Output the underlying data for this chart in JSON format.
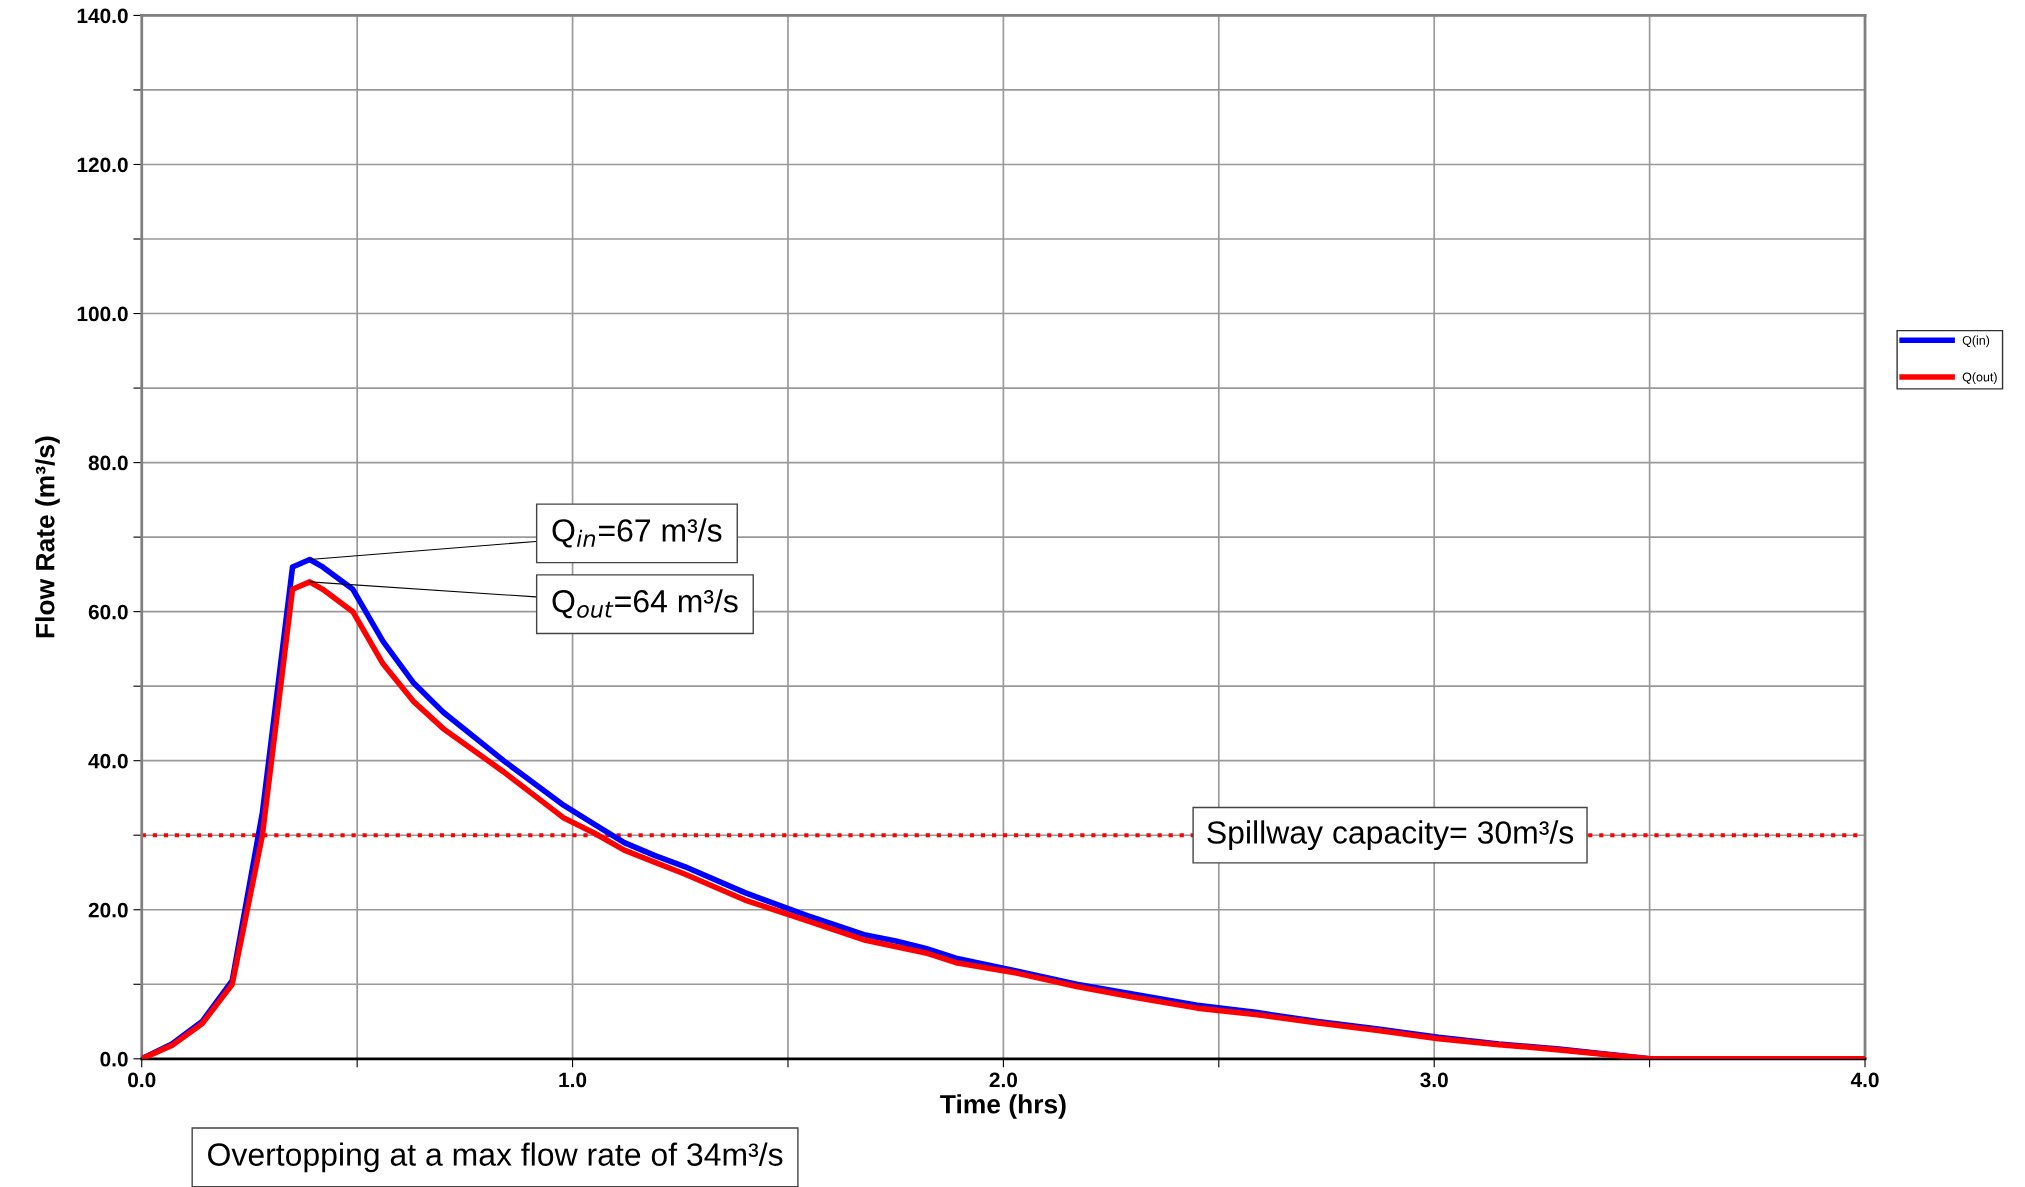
{
  "chart_data": {
    "type": "line",
    "xlabel": "Time (hrs)",
    "ylabel": "Flow Rate (m³/s)",
    "xlim": [
      0,
      4
    ],
    "ylim": [
      0,
      140
    ],
    "xticks": [
      {
        "value": 0.0,
        "label": "0.0"
      },
      {
        "value": 0.5,
        "label": null
      },
      {
        "value": 1.0,
        "label": "1.0"
      },
      {
        "value": 1.5,
        "label": null
      },
      {
        "value": 2.0,
        "label": "2.0"
      },
      {
        "value": 2.5,
        "label": null
      },
      {
        "value": 3.0,
        "label": "3.0"
      },
      {
        "value": 3.5,
        "label": null
      },
      {
        "value": 4.0,
        "label": "4.0"
      }
    ],
    "yticks": [
      {
        "value": 0,
        "label": "0.0"
      },
      {
        "value": 10,
        "label": null
      },
      {
        "value": 20,
        "label": "20.0"
      },
      {
        "value": 30,
        "label": null
      },
      {
        "value": 40,
        "label": "40.0"
      },
      {
        "value": 50,
        "label": null
      },
      {
        "value": 60,
        "label": "60.0"
      },
      {
        "value": 70,
        "label": null
      },
      {
        "value": 80,
        "label": "80.0"
      },
      {
        "value": 90,
        "label": null
      },
      {
        "value": 100,
        "label": "100.0"
      },
      {
        "value": 110,
        "label": null
      },
      {
        "value": 120,
        "label": "120.0"
      },
      {
        "value": 130,
        "label": null
      },
      {
        "value": 140,
        "label": "140.0"
      }
    ],
    "grid": true,
    "legend": "right",
    "marker": "none",
    "line_style": "solid",
    "series": [
      {
        "name": "Q(in)",
        "color": "#0000ff",
        "x": [
          0,
          0.07,
          0.14,
          0.21,
          0.28,
          0.35,
          0.39,
          0.42,
          0.49,
          0.56,
          0.63,
          0.7,
          0.84,
          0.98,
          1.05,
          1.12,
          1.19,
          1.26,
          1.4,
          1.54,
          1.68,
          1.75,
          1.82,
          1.89,
          2.03,
          2.17,
          2.31,
          2.45,
          2.59,
          2.73,
          2.87,
          3.01,
          3.15,
          3.29,
          3.5,
          4.0
        ],
        "values": [
          0,
          2,
          5,
          10.5,
          33,
          66,
          67,
          66,
          63,
          56,
          50.5,
          46.5,
          40,
          34,
          31.5,
          29,
          27.3,
          25.8,
          22.3,
          19.3,
          16.6,
          15.8,
          14.8,
          13.5,
          11.8,
          10,
          8.6,
          7.2,
          6.2,
          5,
          4,
          2.9,
          2,
          1.3,
          0,
          0
        ]
      },
      {
        "name": "Q(out)",
        "color": "#ff0000",
        "x": [
          0,
          0.07,
          0.14,
          0.21,
          0.28,
          0.35,
          0.39,
          0.42,
          0.49,
          0.56,
          0.63,
          0.7,
          0.84,
          0.98,
          1.05,
          1.12,
          1.19,
          1.26,
          1.4,
          1.54,
          1.68,
          1.82,
          1.89,
          2.03,
          2.17,
          2.31,
          2.45,
          2.59,
          2.73,
          2.87,
          3.01,
          3.15,
          3.29,
          3.5,
          4.0
        ],
        "values": [
          0,
          1.8,
          4.7,
          10,
          30,
          63,
          64,
          63,
          60,
          53,
          48,
          44.3,
          38.5,
          32.3,
          30.3,
          28,
          26.4,
          24.8,
          21.3,
          18.6,
          15.9,
          14.2,
          12.9,
          11.5,
          9.7,
          8.2,
          6.8,
          5.9,
          4.8,
          3.8,
          2.7,
          1.9,
          1.2,
          0,
          0
        ]
      }
    ],
    "ref_lines": [
      {
        "axis": "y",
        "value": 30,
        "label": "Spillway capacity= 30m³/s",
        "color": "#ff0000",
        "line_style": "dotted"
      }
    ],
    "annotations": [
      {
        "text": "Q$_{in}$=67 m³/s",
        "x": 0.39,
        "y": 67
      },
      {
        "text": "Q$_{out}$=64 m³/s",
        "x": 0.39,
        "y": 64
      },
      "Overtopping at a max flow rate of 34m³/s"
    ]
  }
}
